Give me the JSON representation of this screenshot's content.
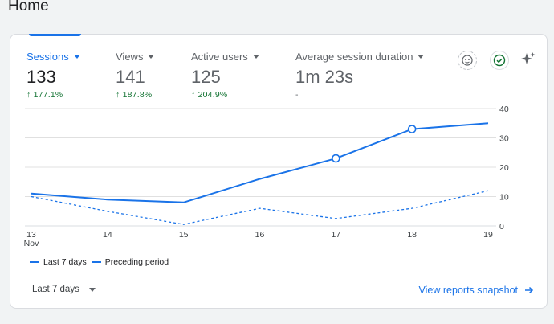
{
  "page": {
    "title": "Home"
  },
  "metrics": [
    {
      "label": "Sessions",
      "value": "133",
      "change": "177.1%",
      "arrow": "↑"
    },
    {
      "label": "Views",
      "value": "141",
      "change": "187.8%",
      "arrow": "↑"
    },
    {
      "label": "Active users",
      "value": "125",
      "change": "204.9%",
      "arrow": "↑"
    },
    {
      "label": "Average session duration",
      "value": "1m 23s",
      "change": "-"
    }
  ],
  "toolbar": {
    "icons": [
      "insights-badge-icon",
      "check-circle-icon",
      "sparkle-icon"
    ]
  },
  "chart_data": {
    "type": "line",
    "categories": [
      "13",
      "14",
      "15",
      "16",
      "17",
      "18",
      "19"
    ],
    "x_sublabel": "Nov",
    "series": [
      {
        "name": "Last 7 days",
        "values": [
          11,
          9,
          8,
          16,
          23,
          33,
          35
        ],
        "style": "solid",
        "color": "#1a73e8"
      },
      {
        "name": "Preceding period",
        "values": [
          10,
          5,
          0.5,
          6,
          2.5,
          6,
          12
        ],
        "style": "dashed",
        "color": "#1a73e8"
      }
    ],
    "y_ticks": [
      0,
      10,
      20,
      30,
      40
    ],
    "ylim": [
      0,
      40
    ],
    "y_axis_position": "right",
    "highlighted_points": [
      "17",
      "18"
    ],
    "grid": true,
    "legend_position": "bottom-left"
  },
  "footer": {
    "range_label": "Last 7 days",
    "link_label": "View reports snapshot"
  },
  "colors": {
    "accent": "#1a73e8",
    "positive": "#137333",
    "grid": "#e0e0e0"
  }
}
